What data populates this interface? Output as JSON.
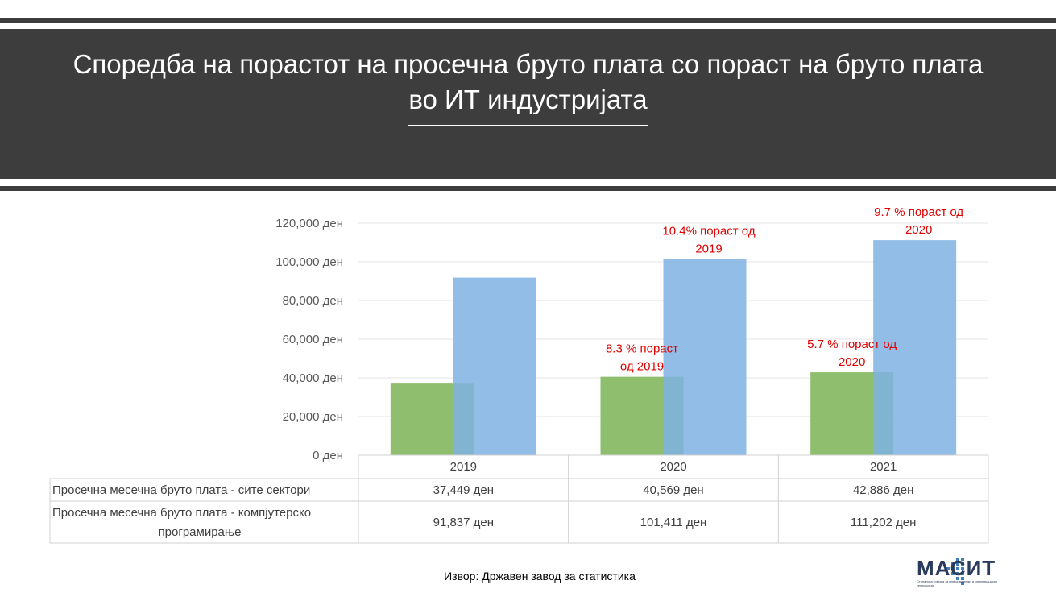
{
  "header": {
    "title": "Споредба на порастот на просечна бруто плата со пораст на бруто плата во ИТ индустријата"
  },
  "chart_data": {
    "type": "bar",
    "categories": [
      "2019",
      "2020",
      "2021"
    ],
    "series": [
      {
        "name": "Просечна месечна бруто плата - сите сектори",
        "values": [
          37449,
          40569,
          42886
        ],
        "labels": [
          "37,449 ден",
          "40,569 ден",
          "42,886 ден"
        ],
        "color": "#8fbf6e"
      },
      {
        "name": "Просечна месечна бруто плата - компјутерско програмирање",
        "values": [
          91837,
          101411,
          111202
        ],
        "labels": [
          "91,837 ден",
          "101,411 ден",
          "111,202 ден"
        ],
        "color": "#7fb2e3"
      }
    ],
    "ylim": [
      0,
      120000
    ],
    "yticks": [
      0,
      20000,
      40000,
      60000,
      80000,
      100000,
      120000
    ],
    "ytick_labels": [
      "0 ден",
      "20,000 ден",
      "40,000 ден",
      "60,000 ден",
      "80,000 ден",
      "100,000 ден",
      "120,000 ден"
    ],
    "grid": true,
    "data_table": true,
    "annotations": [
      {
        "series": 0,
        "category": 1,
        "lines": [
          "8.3 % пораст",
          "од 2019"
        ]
      },
      {
        "series": 1,
        "category": 1,
        "lines": [
          "10.4% пораст од",
          "2019"
        ]
      },
      {
        "series": 0,
        "category": 2,
        "lines": [
          "5.7 % пораст од",
          "2020"
        ]
      },
      {
        "series": 1,
        "category": 2,
        "lines": [
          "9.7 % пораст од",
          "2020"
        ]
      }
    ],
    "annotation_color": "#e00000"
  },
  "footer": {
    "source": "Извор: Државен завод за статистика",
    "logo_text": "МАСИТ",
    "logo_subtext": "Стопанска комора за информатички и комуникациски технологии"
  }
}
